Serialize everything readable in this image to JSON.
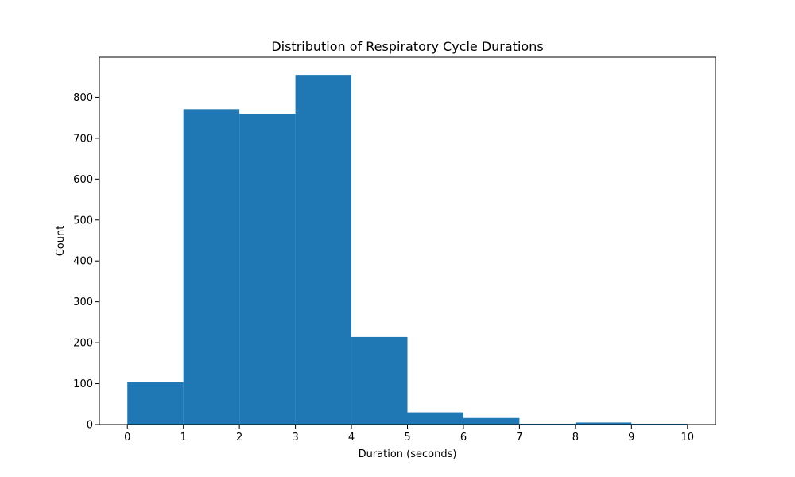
{
  "chart_data": {
    "type": "bar",
    "title": "Distribution of Respiratory Cycle Durations",
    "xlabel": "Duration (seconds)",
    "ylabel": "Count",
    "bins": [
      {
        "x0": 0,
        "x1": 1,
        "count": 103
      },
      {
        "x0": 1,
        "x1": 2,
        "count": 771
      },
      {
        "x0": 2,
        "x1": 3,
        "count": 760
      },
      {
        "x0": 3,
        "x1": 4,
        "count": 855
      },
      {
        "x0": 4,
        "x1": 5,
        "count": 214
      },
      {
        "x0": 5,
        "x1": 6,
        "count": 30
      },
      {
        "x0": 6,
        "x1": 7,
        "count": 16
      },
      {
        "x0": 7,
        "x1": 8,
        "count": 2
      },
      {
        "x0": 8,
        "x1": 9,
        "count": 5
      },
      {
        "x0": 9,
        "x1": 10,
        "count": 2
      }
    ],
    "xlim": [
      -0.5,
      10.5
    ],
    "ylim": [
      0,
      898
    ],
    "x_ticks": [
      0,
      1,
      2,
      3,
      4,
      5,
      6,
      7,
      8,
      9,
      10
    ],
    "y_ticks": [
      0,
      100,
      200,
      300,
      400,
      500,
      600,
      700,
      800
    ],
    "bar_color": "#1f77b4",
    "grid": false,
    "legend": "none"
  }
}
